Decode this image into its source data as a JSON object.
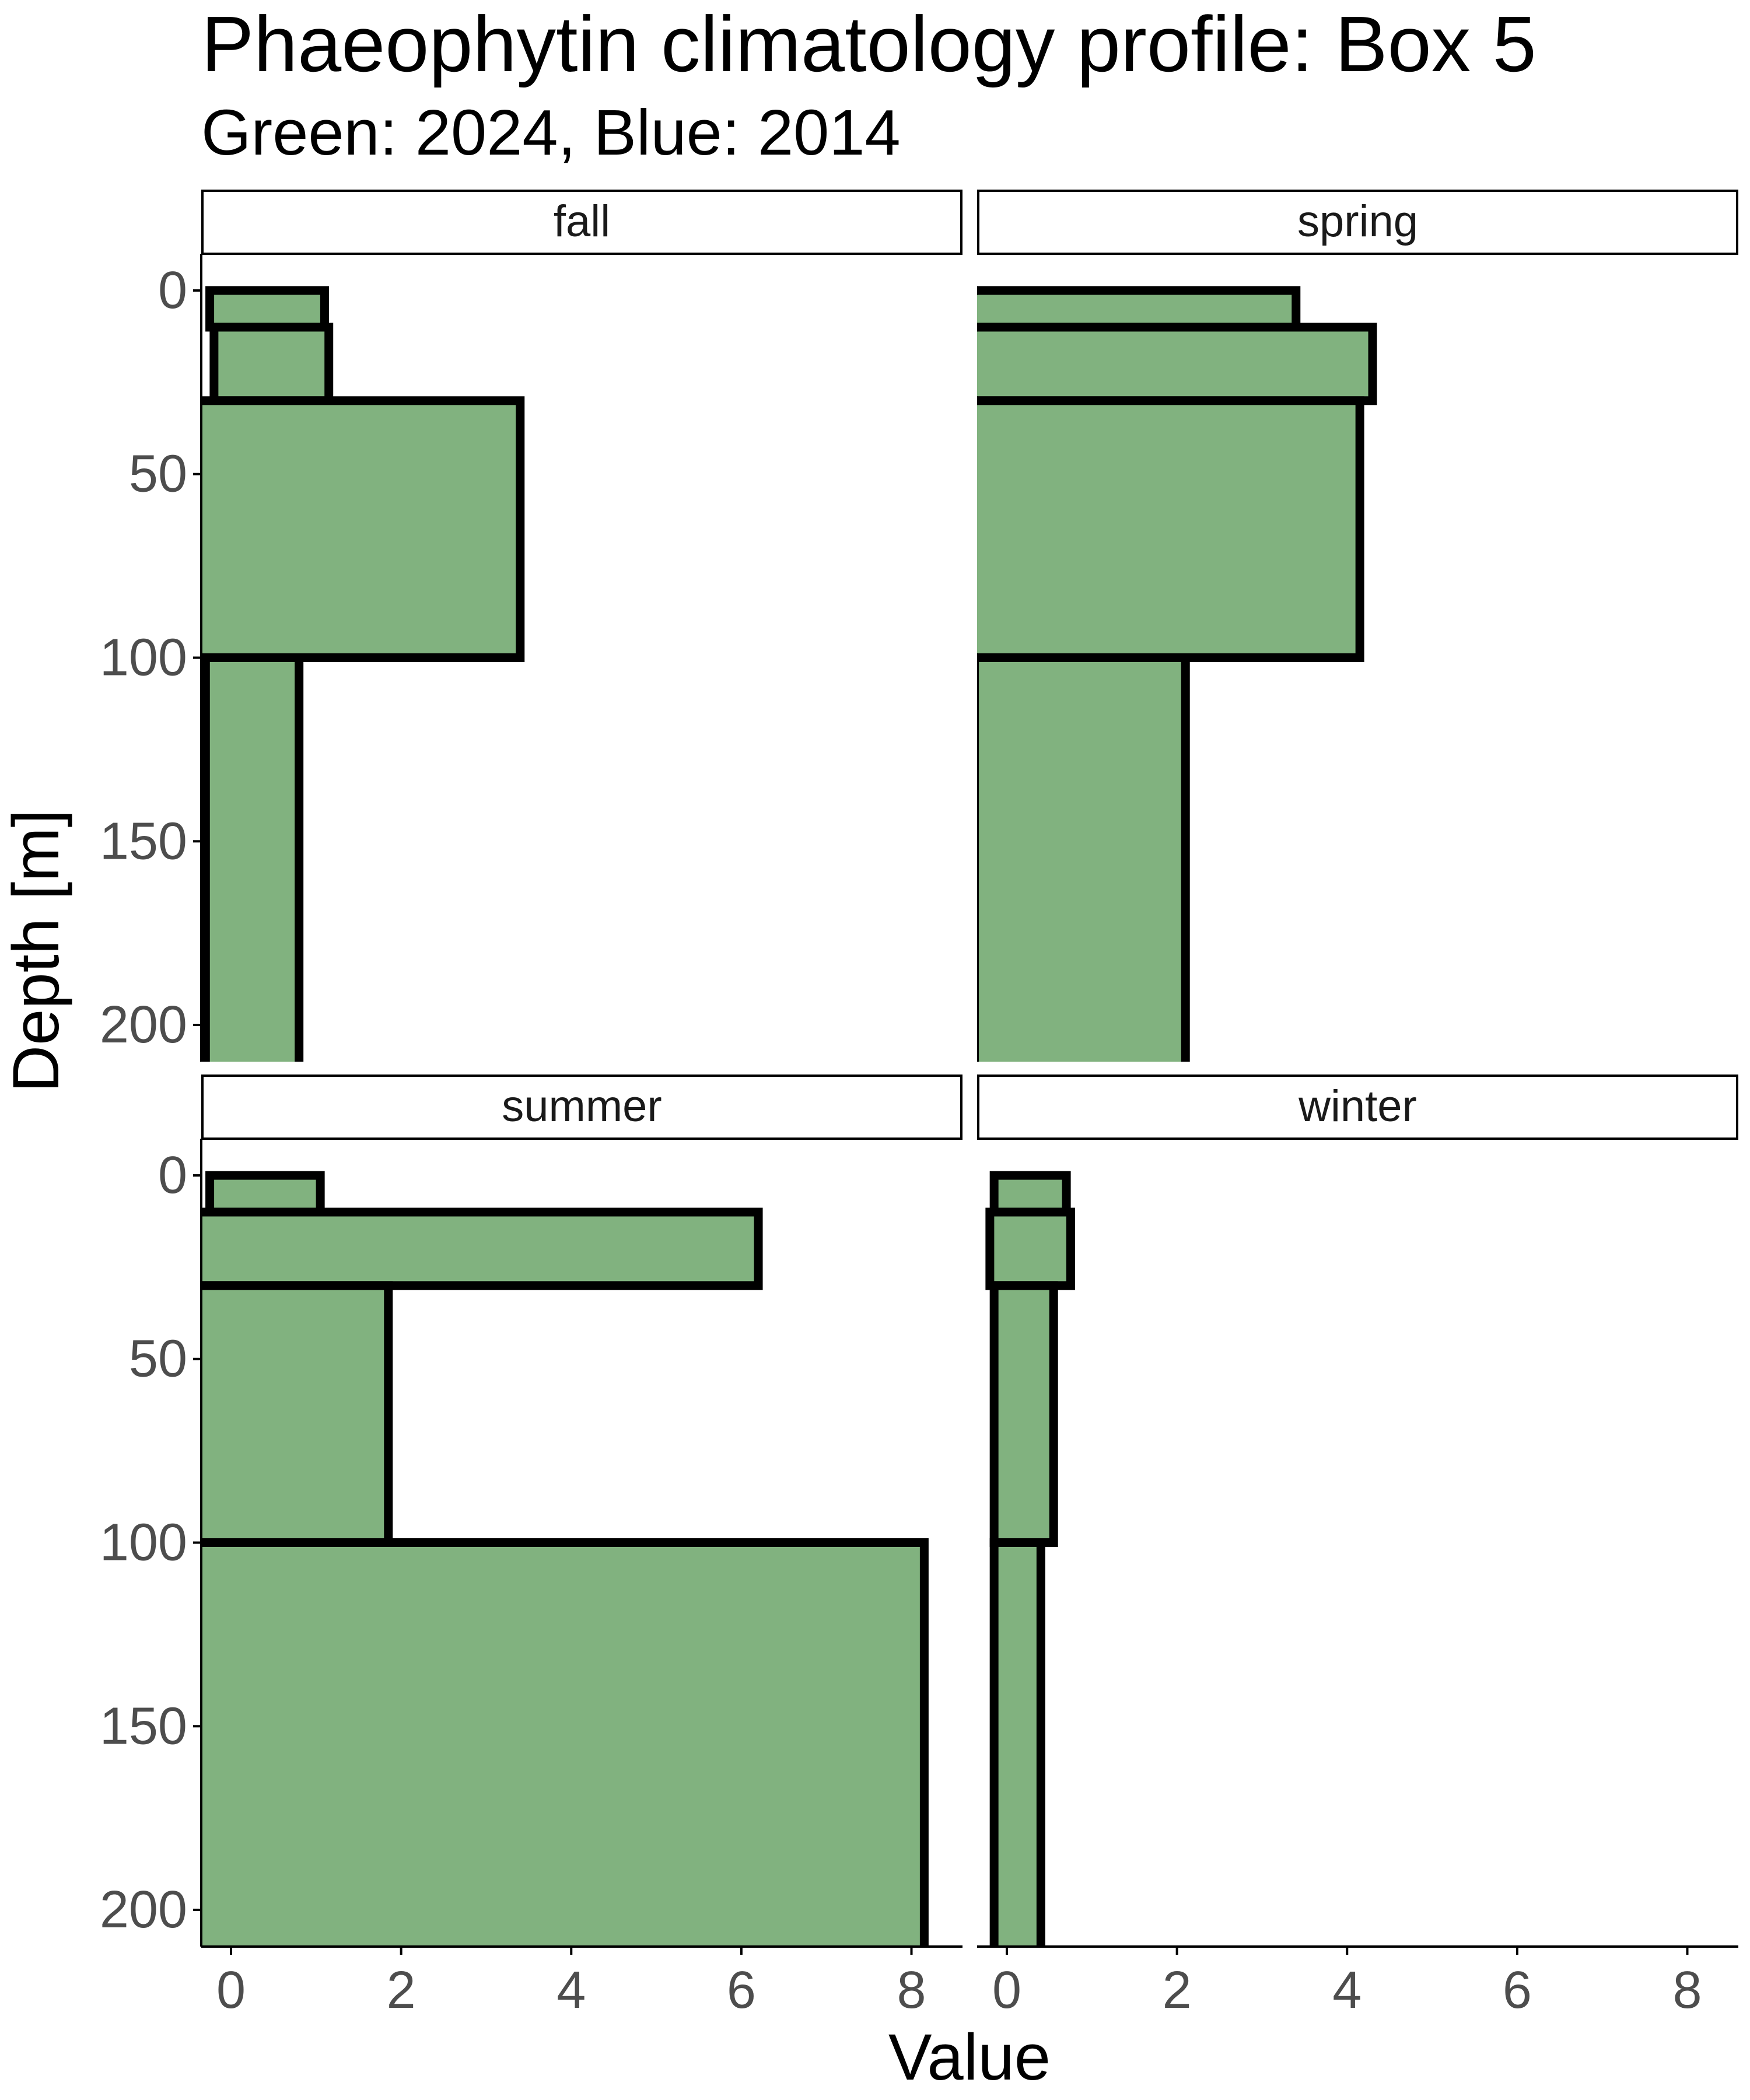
{
  "chart_data": {
    "type": "bar",
    "orientation": "horizontal",
    "title": "Phaeophytin climatology profile: Box 5",
    "subtitle": "Green: 2024, Blue: 2014",
    "xlabel": "Value",
    "ylabel": "Depth [m]",
    "xlim": [
      -0.35,
      8.6
    ],
    "ylim": [
      210,
      -10
    ],
    "x_ticks": [
      0,
      2,
      4,
      6,
      8
    ],
    "y_ticks": [
      0,
      50,
      100,
      150,
      200
    ],
    "x_tick_labels": [
      "0",
      "2",
      "4",
      "6",
      "8"
    ],
    "y_tick_labels": [
      "0",
      "50",
      "100",
      "150",
      "200"
    ],
    "grid": false,
    "legend": "none",
    "fill_color": "#81b27f",
    "outline_color": "#000000",
    "axis_color": "#000000",
    "tick_label_color": "#4d4d4d",
    "panels": [
      {
        "name": "fall",
        "bars": [
          {
            "depth_top": 0,
            "depth_bottom": 10,
            "value_min": -0.25,
            "value_max": 1.1
          },
          {
            "depth_top": 10,
            "depth_bottom": 30,
            "value_min": -0.2,
            "value_max": 1.15
          },
          {
            "depth_top": 30,
            "depth_bottom": 100,
            "value_min": -0.5,
            "value_max": 3.4
          },
          {
            "depth_top": 100,
            "depth_bottom": 215,
            "value_min": -0.3,
            "value_max": 0.8
          }
        ]
      },
      {
        "name": "spring",
        "bars": [
          {
            "depth_top": 0,
            "depth_bottom": 10,
            "value_min": -0.5,
            "value_max": 3.4
          },
          {
            "depth_top": 10,
            "depth_bottom": 30,
            "value_min": -0.5,
            "value_max": 4.3
          },
          {
            "depth_top": 30,
            "depth_bottom": 100,
            "value_min": -0.5,
            "value_max": 4.15
          },
          {
            "depth_top": 100,
            "depth_bottom": 215,
            "value_min": -0.38,
            "value_max": 2.1
          }
        ]
      },
      {
        "name": "summer",
        "bars": [
          {
            "depth_top": 0,
            "depth_bottom": 10,
            "value_min": -0.25,
            "value_max": 1.05
          },
          {
            "depth_top": 10,
            "depth_bottom": 30,
            "value_min": -0.5,
            "value_max": 6.2
          },
          {
            "depth_top": 30,
            "depth_bottom": 100,
            "value_min": -0.5,
            "value_max": 1.85
          },
          {
            "depth_top": 100,
            "depth_bottom": 215,
            "value_min": -0.5,
            "value_max": 8.15
          }
        ]
      },
      {
        "name": "winter",
        "bars": [
          {
            "depth_top": 0,
            "depth_bottom": 10,
            "value_min": -0.15,
            "value_max": 0.7
          },
          {
            "depth_top": 10,
            "depth_bottom": 30,
            "value_min": -0.2,
            "value_max": 0.75
          },
          {
            "depth_top": 30,
            "depth_bottom": 100,
            "value_min": -0.15,
            "value_max": 0.55
          },
          {
            "depth_top": 100,
            "depth_bottom": 215,
            "value_min": -0.15,
            "value_max": 0.4
          }
        ]
      }
    ]
  }
}
